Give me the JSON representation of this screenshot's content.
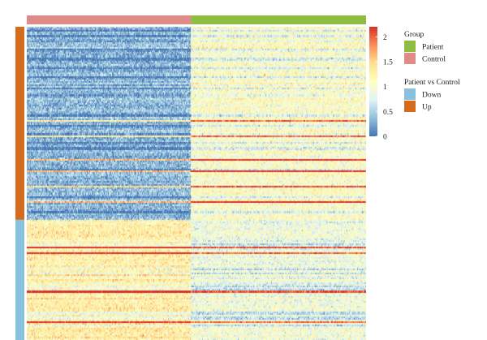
{
  "chart_data": {
    "type": "heatmap",
    "value_scale": {
      "min": 0,
      "max": 2.2,
      "ticks": [
        0,
        0.5,
        1,
        1.5,
        2
      ],
      "tick_labels": [
        "0",
        "0.5",
        "1",
        "1.5",
        "2"
      ],
      "colors": [
        "#4575b4",
        "#91bfdb",
        "#e0f3f8",
        "#ffffbf",
        "#fee090",
        "#fc8d59",
        "#d73027"
      ]
    },
    "column_annotation": {
      "title": "Group",
      "order": [
        "Control",
        "Patient"
      ],
      "column_counts": [
        200,
        213
      ],
      "colors": {
        "Patient": "#8fbd41",
        "Control": "#e08b87"
      },
      "legend": [
        {
          "label": "Patient",
          "color": "#8fbd41"
        },
        {
          "label": "Control",
          "color": "#e08b87"
        }
      ]
    },
    "row_annotation": {
      "title": "Patient vs Control",
      "order": [
        "Up",
        "Down"
      ],
      "row_counts": [
        114,
        71
      ],
      "colors": {
        "Down": "#88c0dd",
        "Up": "#d36c1c"
      },
      "legend": [
        {
          "label": "Down",
          "color": "#88c0dd"
        },
        {
          "label": "Up",
          "color": "#d36c1c"
        }
      ]
    },
    "block_means": {
      "Up": {
        "Control": 0.35,
        "Patient": 1.05
      },
      "Down": {
        "Control": 1.25,
        "Patient": 0.9
      }
    },
    "title": "",
    "xlabel": "",
    "ylabel": ""
  }
}
